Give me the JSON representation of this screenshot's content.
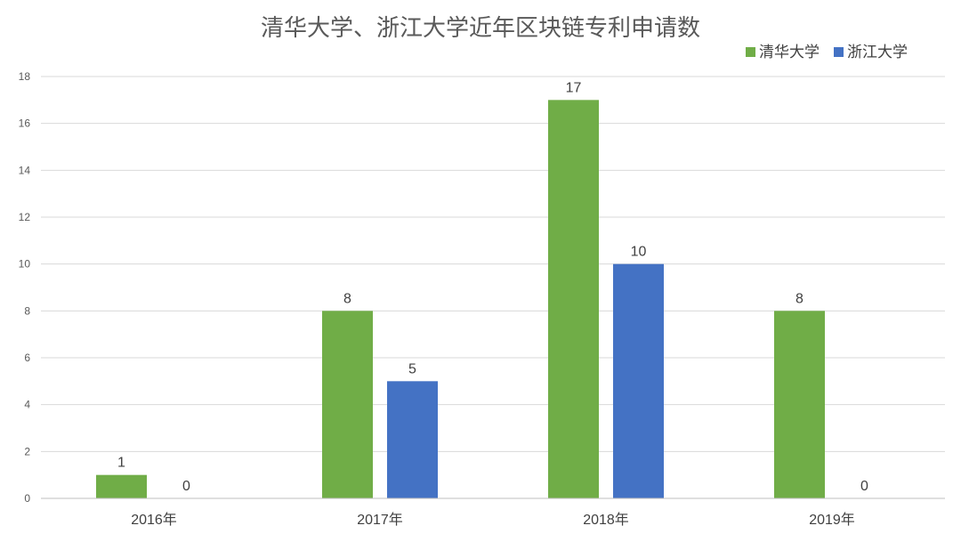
{
  "chart_data": {
    "type": "bar",
    "title": "清华大学、浙江大学近年区块链专利申请数",
    "categories": [
      "2016年",
      "2017年",
      "2018年",
      "2019年"
    ],
    "series": [
      {
        "name": "清华大学",
        "values": [
          1,
          8,
          17,
          8
        ],
        "color": "#70ad47"
      },
      {
        "name": "浙江大学",
        "values": [
          0,
          5,
          10,
          0
        ],
        "color": "#4472c4"
      }
    ],
    "ylim": [
      0,
      18
    ],
    "yticks": [
      0,
      2,
      4,
      6,
      8,
      10,
      12,
      14,
      16,
      18
    ],
    "xlabel": "",
    "ylabel": "",
    "grid": true,
    "legend_position": "top-right",
    "data_labels": true
  }
}
